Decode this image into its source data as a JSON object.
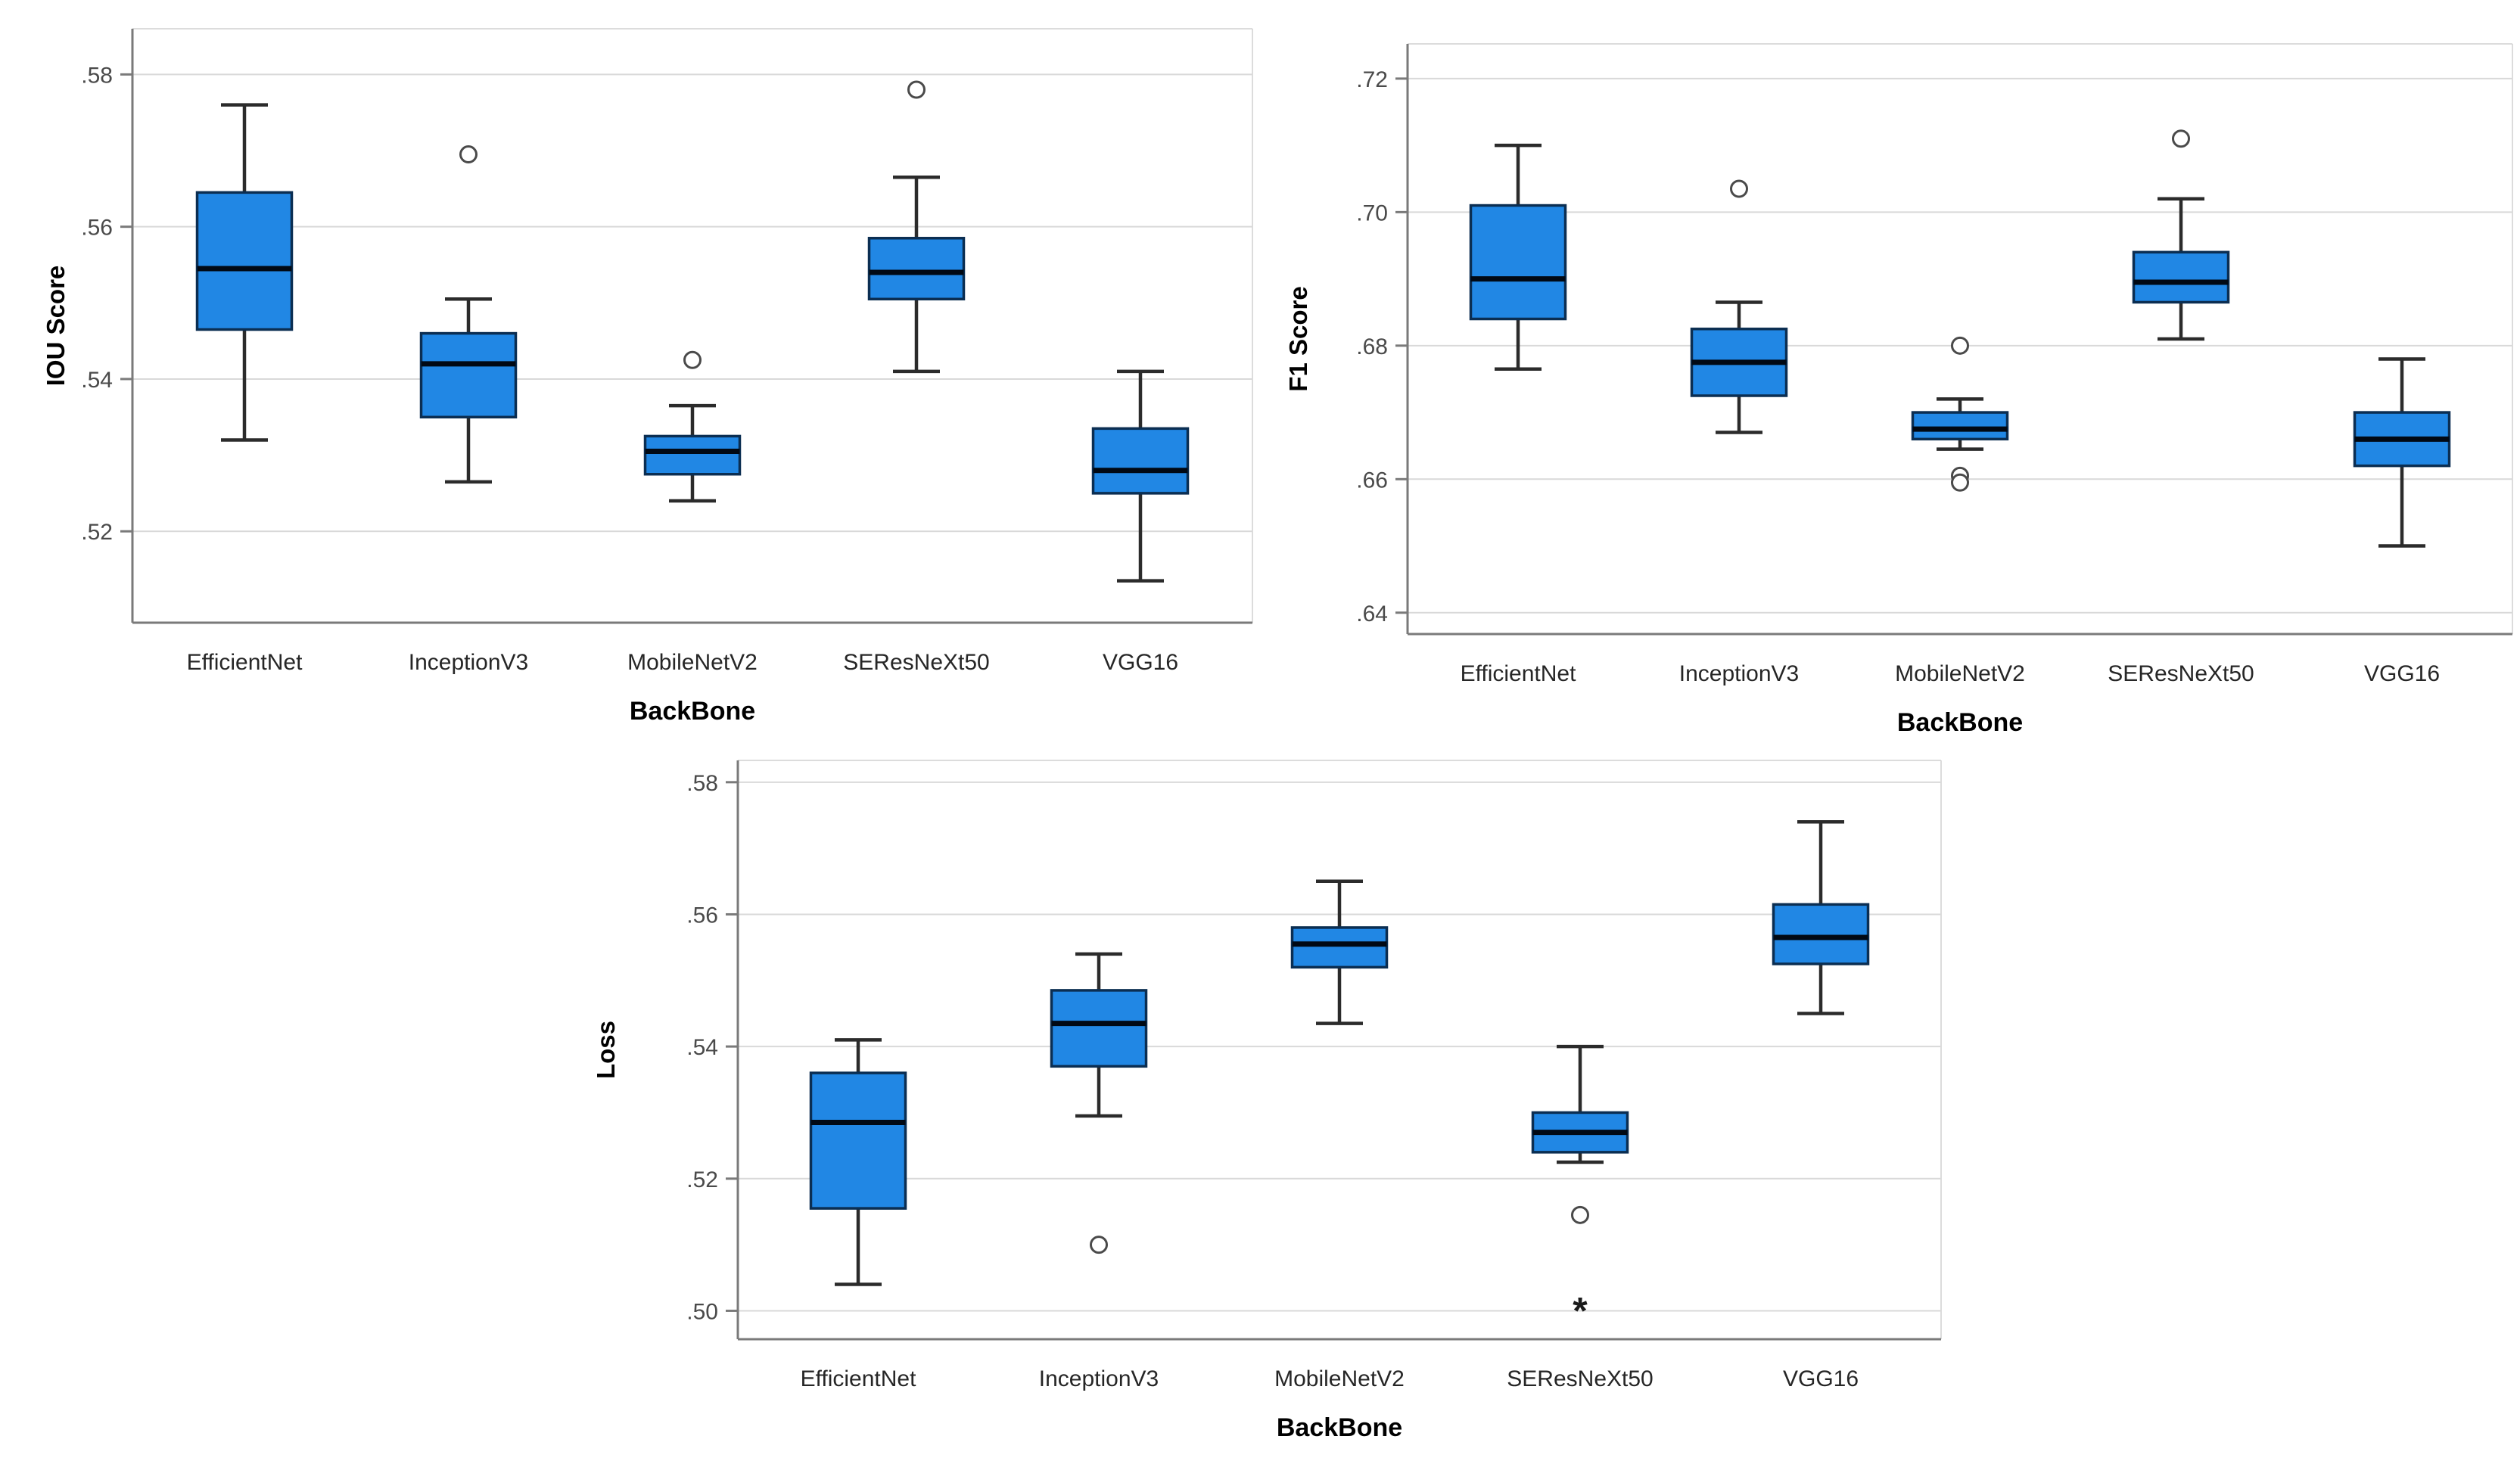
{
  "figure": {
    "background": "#ffffff"
  },
  "colors": {
    "box_fill": "#2187e4",
    "box_border": "#0b2e52",
    "median": "#010914",
    "whisker": "#2b2b2b",
    "gridline": "#d9d9d9",
    "axis": "#7a7a7a",
    "frame_light": "#d0d0d0",
    "tick_text": "#4a4a4a",
    "label_text": "#262626",
    "title_text": "#000000",
    "outlier_stroke": "#4a4a4a",
    "outlier_fill": "#ffffff",
    "extreme_text": "#1a1a1a",
    "background": "#ffffff"
  },
  "chart_data": [
    {
      "id": "iou-score",
      "type": "boxplot",
      "title": "",
      "xlabel": "BackBone",
      "ylabel": "IOU Score",
      "ylim": [
        0.508,
        0.586
      ],
      "grid": true,
      "legend": "none",
      "yticks": [
        {
          "label": ".58",
          "value": 0.58
        },
        {
          "label": ".56",
          "value": 0.56
        },
        {
          "label": ".54",
          "value": 0.54
        },
        {
          "label": ".52",
          "value": 0.52
        }
      ],
      "categories": [
        "EfficientNet",
        "InceptionV3",
        "MobileNetV2",
        "SEResNeXt50",
        "VGG16"
      ],
      "series": [
        {
          "name": "EfficientNet",
          "low": 0.532,
          "q1": 0.5465,
          "median": 0.5545,
          "q3": 0.5645,
          "high": 0.576,
          "outliers": [],
          "extremes": []
        },
        {
          "name": "InceptionV3",
          "low": 0.5265,
          "q1": 0.535,
          "median": 0.542,
          "q3": 0.546,
          "high": 0.5505,
          "outliers": [
            0.5695
          ],
          "extremes": []
        },
        {
          "name": "MobileNetV2",
          "low": 0.524,
          "q1": 0.5275,
          "median": 0.5305,
          "q3": 0.5325,
          "high": 0.5365,
          "outliers": [
            0.5425
          ],
          "extremes": []
        },
        {
          "name": "SEResNeXt50",
          "low": 0.541,
          "q1": 0.5505,
          "median": 0.554,
          "q3": 0.5585,
          "high": 0.5665,
          "outliers": [
            0.578
          ],
          "extremes": []
        },
        {
          "name": "VGG16",
          "low": 0.5135,
          "q1": 0.525,
          "median": 0.528,
          "q3": 0.5335,
          "high": 0.541,
          "outliers": [],
          "extremes": []
        }
      ]
    },
    {
      "id": "f1-score",
      "type": "boxplot",
      "title": "",
      "xlabel": "BackBone",
      "ylabel": "F1 Score",
      "ylim": [
        0.6368,
        0.7252
      ],
      "grid": true,
      "legend": "none",
      "yticks": [
        {
          "label": ".72",
          "value": 0.72
        },
        {
          "label": ".70",
          "value": 0.7
        },
        {
          "label": ".68",
          "value": 0.68
        },
        {
          "label": ".66",
          "value": 0.66
        },
        {
          "label": ".64",
          "value": 0.64
        }
      ],
      "categories": [
        "EfficientNet",
        "InceptionV3",
        "MobileNetV2",
        "SEResNeXt50",
        "VGG16"
      ],
      "series": [
        {
          "name": "EfficientNet",
          "low": 0.6765,
          "q1": 0.684,
          "median": 0.69,
          "q3": 0.701,
          "high": 0.71,
          "outliers": [],
          "extremes": []
        },
        {
          "name": "InceptionV3",
          "low": 0.667,
          "q1": 0.6725,
          "median": 0.6775,
          "q3": 0.6825,
          "high": 0.6865,
          "outliers": [
            0.7035
          ],
          "extremes": []
        },
        {
          "name": "MobileNetV2",
          "low": 0.6645,
          "q1": 0.666,
          "median": 0.6675,
          "q3": 0.67,
          "high": 0.672,
          "outliers": [
            0.68,
            0.6605,
            0.6595
          ],
          "extremes": []
        },
        {
          "name": "SEResNeXt50",
          "low": 0.681,
          "q1": 0.6865,
          "median": 0.6895,
          "q3": 0.694,
          "high": 0.702,
          "outliers": [
            0.711
          ],
          "extremes": []
        },
        {
          "name": "VGG16",
          "low": 0.65,
          "q1": 0.662,
          "median": 0.666,
          "q3": 0.67,
          "high": 0.678,
          "outliers": [],
          "extremes": []
        }
      ]
    },
    {
      "id": "loss",
      "type": "boxplot",
      "title": "",
      "xlabel": "BackBone",
      "ylabel": "Loss",
      "ylim": [
        0.4957,
        0.5833
      ],
      "grid": true,
      "legend": "none",
      "yticks": [
        {
          "label": ".58",
          "value": 0.58
        },
        {
          "label": ".56",
          "value": 0.56
        },
        {
          "label": ".54",
          "value": 0.54
        },
        {
          "label": ".52",
          "value": 0.52
        },
        {
          "label": ".50",
          "value": 0.5
        }
      ],
      "categories": [
        "EfficientNet",
        "InceptionV3",
        "MobileNetV2",
        "SEResNeXt50",
        "VGG16"
      ],
      "series": [
        {
          "name": "EfficientNet",
          "low": 0.504,
          "q1": 0.5155,
          "median": 0.5285,
          "q3": 0.536,
          "high": 0.541,
          "outliers": [],
          "extremes": []
        },
        {
          "name": "InceptionV3",
          "low": 0.5295,
          "q1": 0.537,
          "median": 0.5435,
          "q3": 0.5485,
          "high": 0.554,
          "outliers": [
            0.51
          ],
          "extremes": []
        },
        {
          "name": "MobileNetV2",
          "low": 0.5435,
          "q1": 0.552,
          "median": 0.5555,
          "q3": 0.558,
          "high": 0.565,
          "outliers": [],
          "extremes": []
        },
        {
          "name": "SEResNeXt50",
          "low": 0.5225,
          "q1": 0.524,
          "median": 0.527,
          "q3": 0.53,
          "high": 0.54,
          "outliers": [
            0.5145
          ],
          "extremes": [
            0.5
          ]
        },
        {
          "name": "VGG16",
          "low": 0.545,
          "q1": 0.5525,
          "median": 0.5565,
          "q3": 0.5615,
          "high": 0.574,
          "outliers": [],
          "extremes": []
        }
      ]
    }
  ]
}
